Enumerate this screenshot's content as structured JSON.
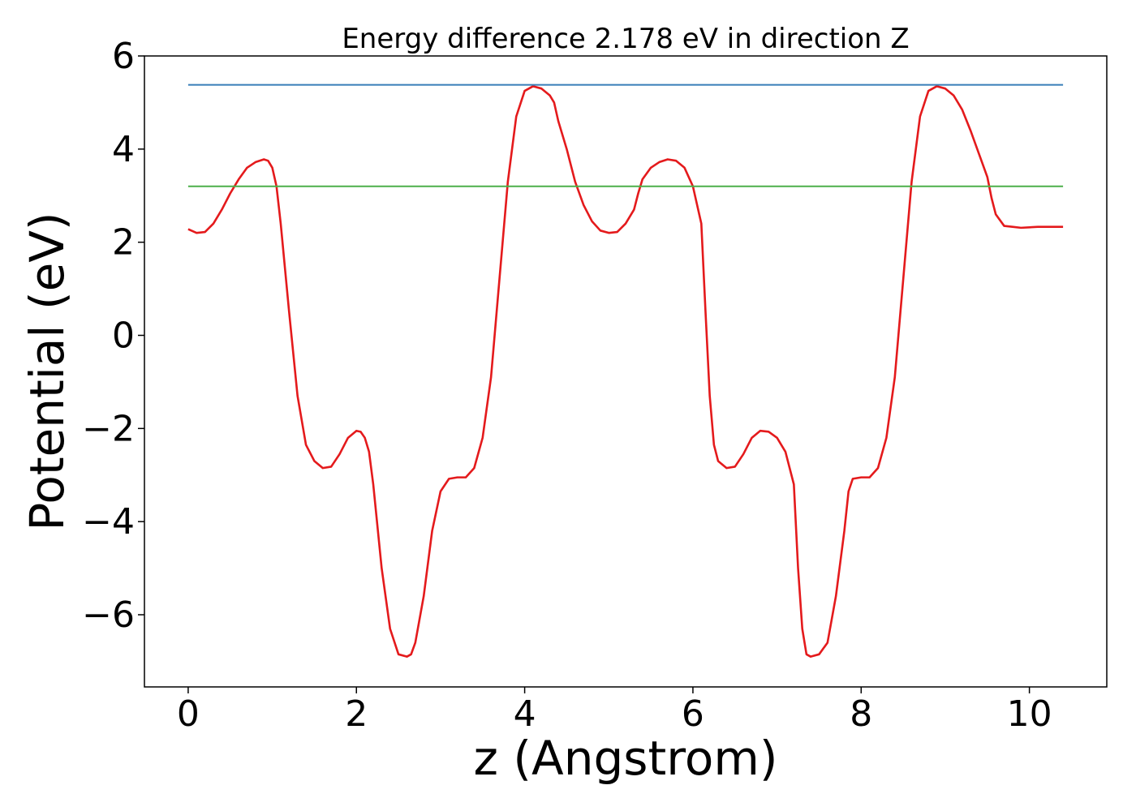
{
  "chart_data": {
    "type": "line",
    "title": "Energy difference 2.178 eV in direction Z",
    "xlabel": "z (Angstrom)",
    "ylabel": "Potential (eV)",
    "xlim": [
      -0.52,
      10.92
    ],
    "ylim": [
      -7.55,
      6.0
    ],
    "xticks": [
      0,
      2,
      4,
      6,
      8,
      10
    ],
    "xtick_labels": [
      "0",
      "2",
      "4",
      "6",
      "8",
      "10"
    ],
    "yticks": [
      -6,
      -4,
      -2,
      0,
      2,
      4,
      6
    ],
    "ytick_labels": [
      "−6",
      "−4",
      "−2",
      "0",
      "2",
      "4",
      "6"
    ],
    "grid": false,
    "series": [
      {
        "role": "potential",
        "color": "#e41a1c",
        "x": [
          0.0,
          0.1,
          0.2,
          0.3,
          0.4,
          0.5,
          0.6,
          0.7,
          0.8,
          0.9,
          0.95,
          1.0,
          1.05,
          1.1,
          1.2,
          1.3,
          1.4,
          1.5,
          1.6,
          1.7,
          1.8,
          1.9,
          2.0,
          2.05,
          2.1,
          2.15,
          2.2,
          2.3,
          2.4,
          2.5,
          2.6,
          2.65,
          2.7,
          2.8,
          2.9,
          3.0,
          3.1,
          3.2,
          3.3,
          3.4,
          3.5,
          3.6,
          3.7,
          3.8,
          3.9,
          4.0,
          4.1,
          4.2,
          4.3,
          4.35,
          4.4,
          4.5,
          4.6,
          4.7,
          4.8,
          4.9,
          5.0,
          5.1,
          5.2,
          5.3,
          5.35,
          5.4,
          5.5,
          5.6,
          5.7,
          5.8,
          5.9,
          6.0,
          6.1,
          6.15,
          6.2,
          6.25,
          6.3,
          6.4,
          6.5,
          6.6,
          6.7,
          6.8,
          6.9,
          7.0,
          7.1,
          7.2,
          7.25,
          7.3,
          7.35,
          7.4,
          7.5,
          7.6,
          7.7,
          7.8,
          7.85,
          7.9,
          8.0,
          8.1,
          8.2,
          8.3,
          8.4,
          8.5,
          8.6,
          8.7,
          8.8,
          8.9,
          9.0,
          9.1,
          9.2,
          9.3,
          9.4,
          9.5,
          9.55,
          9.6,
          9.7,
          9.8,
          9.9,
          10.0,
          10.1,
          10.2,
          10.3,
          10.4
        ],
        "y": [
          2.28,
          2.2,
          2.22,
          2.4,
          2.7,
          3.05,
          3.35,
          3.6,
          3.72,
          3.78,
          3.75,
          3.6,
          3.2,
          2.4,
          0.5,
          -1.3,
          -2.35,
          -2.7,
          -2.85,
          -2.82,
          -2.55,
          -2.2,
          -2.05,
          -2.07,
          -2.2,
          -2.5,
          -3.2,
          -5.0,
          -6.3,
          -6.85,
          -6.9,
          -6.85,
          -6.6,
          -5.6,
          -4.2,
          -3.35,
          -3.08,
          -3.05,
          -3.05,
          -2.85,
          -2.2,
          -0.9,
          1.2,
          3.3,
          4.7,
          5.25,
          5.35,
          5.3,
          5.15,
          5.0,
          4.6,
          4.0,
          3.3,
          2.8,
          2.45,
          2.25,
          2.2,
          2.22,
          2.4,
          2.7,
          3.05,
          3.35,
          3.6,
          3.72,
          3.78,
          3.75,
          3.6,
          3.2,
          2.4,
          0.5,
          -1.3,
          -2.35,
          -2.7,
          -2.85,
          -2.82,
          -2.55,
          -2.2,
          -2.05,
          -2.07,
          -2.2,
          -2.5,
          -3.2,
          -5.0,
          -6.3,
          -6.85,
          -6.9,
          -6.85,
          -6.6,
          -5.6,
          -4.2,
          -3.35,
          -3.08,
          -3.05,
          -3.05,
          -2.85,
          -2.2,
          -0.9,
          1.2,
          3.3,
          4.7,
          5.25,
          5.35,
          5.3,
          5.15,
          4.85,
          4.4,
          3.9,
          3.4,
          2.95,
          2.6,
          2.35,
          2.33,
          2.31,
          2.32,
          2.33,
          2.33,
          2.33,
          2.33
        ]
      },
      {
        "role": "level-upper",
        "color": "#377eb8",
        "x": [
          0.0,
          10.4
        ],
        "y": [
          5.38,
          5.38
        ]
      },
      {
        "role": "level-lower",
        "color": "#4daf4a",
        "x": [
          0.0,
          10.4
        ],
        "y": [
          3.2,
          3.2
        ]
      }
    ]
  }
}
